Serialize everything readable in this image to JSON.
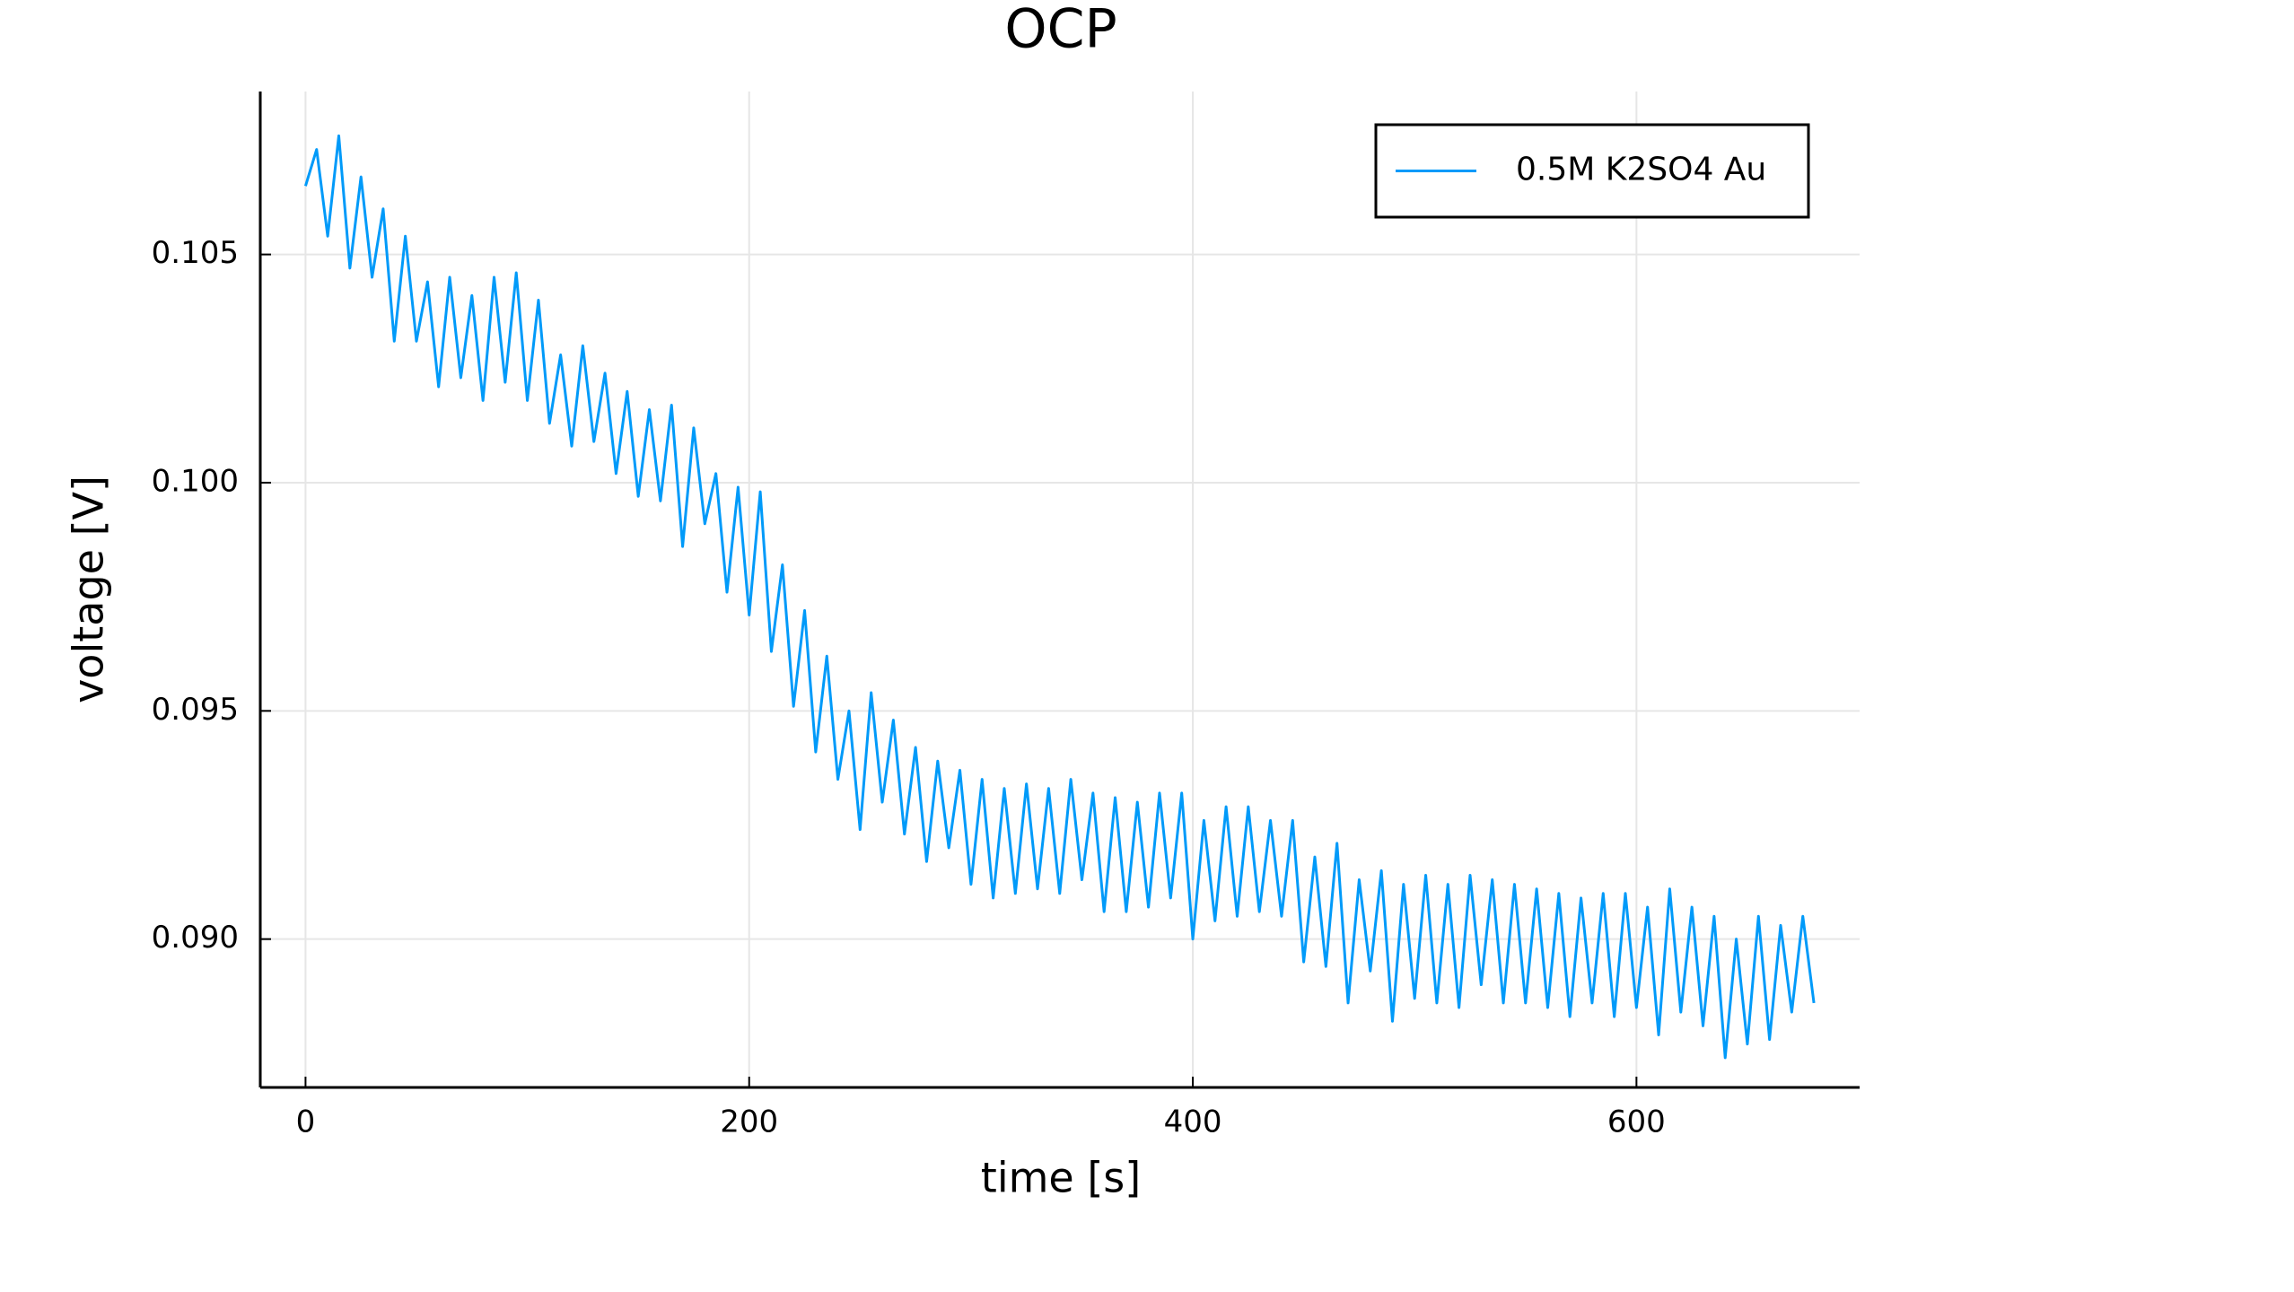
{
  "chart_data": {
    "type": "line",
    "title": "OCP",
    "x_label": "time [s]",
    "y_label": "voltage [V]",
    "x": [
      0,
      5,
      10,
      15,
      20,
      25,
      30,
      35,
      40,
      45,
      50,
      55,
      60,
      65,
      70,
      75,
      80,
      85,
      90,
      95,
      100,
      105,
      110,
      115,
      120,
      125,
      130,
      135,
      140,
      145,
      150,
      155,
      160,
      165,
      170,
      175,
      180,
      185,
      190,
      195,
      200,
      205,
      210,
      215,
      220,
      225,
      230,
      235,
      240,
      245,
      250,
      255,
      260,
      265,
      270,
      275,
      280,
      285,
      290,
      295,
      300,
      305,
      310,
      315,
      320,
      325,
      330,
      335,
      340,
      345,
      350,
      355,
      360,
      365,
      370,
      375,
      380,
      385,
      390,
      395,
      400,
      405,
      410,
      415,
      420,
      425,
      430,
      435,
      440,
      445,
      450,
      455,
      460,
      465,
      470,
      475,
      480,
      485,
      490,
      495,
      500,
      505,
      510,
      515,
      520,
      525,
      530,
      535,
      540,
      545,
      550,
      555,
      560,
      565,
      570,
      575,
      580,
      585,
      590,
      595,
      600,
      605,
      610,
      615,
      620,
      625,
      630,
      635,
      640,
      645,
      650,
      655,
      660,
      665,
      670,
      675,
      680
    ],
    "series": [
      {
        "name": "0.5M K2SO4 Au",
        "color": "#009af9",
        "values": [
          0.1065,
          0.1073,
          0.1054,
          0.1076,
          0.1047,
          0.1067,
          0.1045,
          0.106,
          0.1031,
          0.1054,
          0.1031,
          0.1044,
          0.1021,
          0.1045,
          0.1023,
          0.1041,
          0.1018,
          0.1045,
          0.1022,
          0.1046,
          0.1018,
          0.104,
          0.1013,
          0.1028,
          0.1008,
          0.103,
          0.1009,
          0.1024,
          0.1002,
          0.102,
          0.0997,
          0.1016,
          0.0996,
          0.1017,
          0.0986,
          0.1012,
          0.0991,
          0.1002,
          0.0976,
          0.0999,
          0.0971,
          0.0998,
          0.0963,
          0.0982,
          0.0951,
          0.0972,
          0.0941,
          0.0962,
          0.0935,
          0.095,
          0.0924,
          0.0954,
          0.093,
          0.0948,
          0.0923,
          0.0942,
          0.0917,
          0.0939,
          0.092,
          0.0937,
          0.0912,
          0.0935,
          0.0909,
          0.0933,
          0.091,
          0.0934,
          0.0911,
          0.0933,
          0.091,
          0.0935,
          0.0913,
          0.0932,
          0.0906,
          0.0931,
          0.0906,
          0.093,
          0.0907,
          0.0932,
          0.0909,
          0.0932,
          0.09,
          0.0926,
          0.0904,
          0.0929,
          0.0905,
          0.0929,
          0.0906,
          0.0926,
          0.0905,
          0.0926,
          0.0895,
          0.0918,
          0.0894,
          0.0921,
          0.0886,
          0.0913,
          0.0893,
          0.0915,
          0.0882,
          0.0912,
          0.0887,
          0.0914,
          0.0886,
          0.0912,
          0.0885,
          0.0914,
          0.089,
          0.0913,
          0.0886,
          0.0912,
          0.0886,
          0.0911,
          0.0885,
          0.091,
          0.0883,
          0.0909,
          0.0886,
          0.091,
          0.0883,
          0.091,
          0.0885,
          0.0907,
          0.0879,
          0.0911,
          0.0884,
          0.0907,
          0.0881,
          0.0905,
          0.0874,
          0.09,
          0.0877,
          0.0905,
          0.0878,
          0.0903,
          0.0884,
          0.0905,
          0.0886
        ]
      }
    ],
    "xlim": [
      -20.4,
      700.6
    ],
    "ylim": [
      0.08675,
      0.10857
    ],
    "xticks": [
      0,
      200,
      400,
      600
    ],
    "yticks": [
      {
        "value": 0.09,
        "label": "0.090"
      },
      0.095,
      {
        "value": 0.1,
        "label": "0.100"
      },
      0.105
    ],
    "grid": true,
    "legend": "top-right"
  }
}
